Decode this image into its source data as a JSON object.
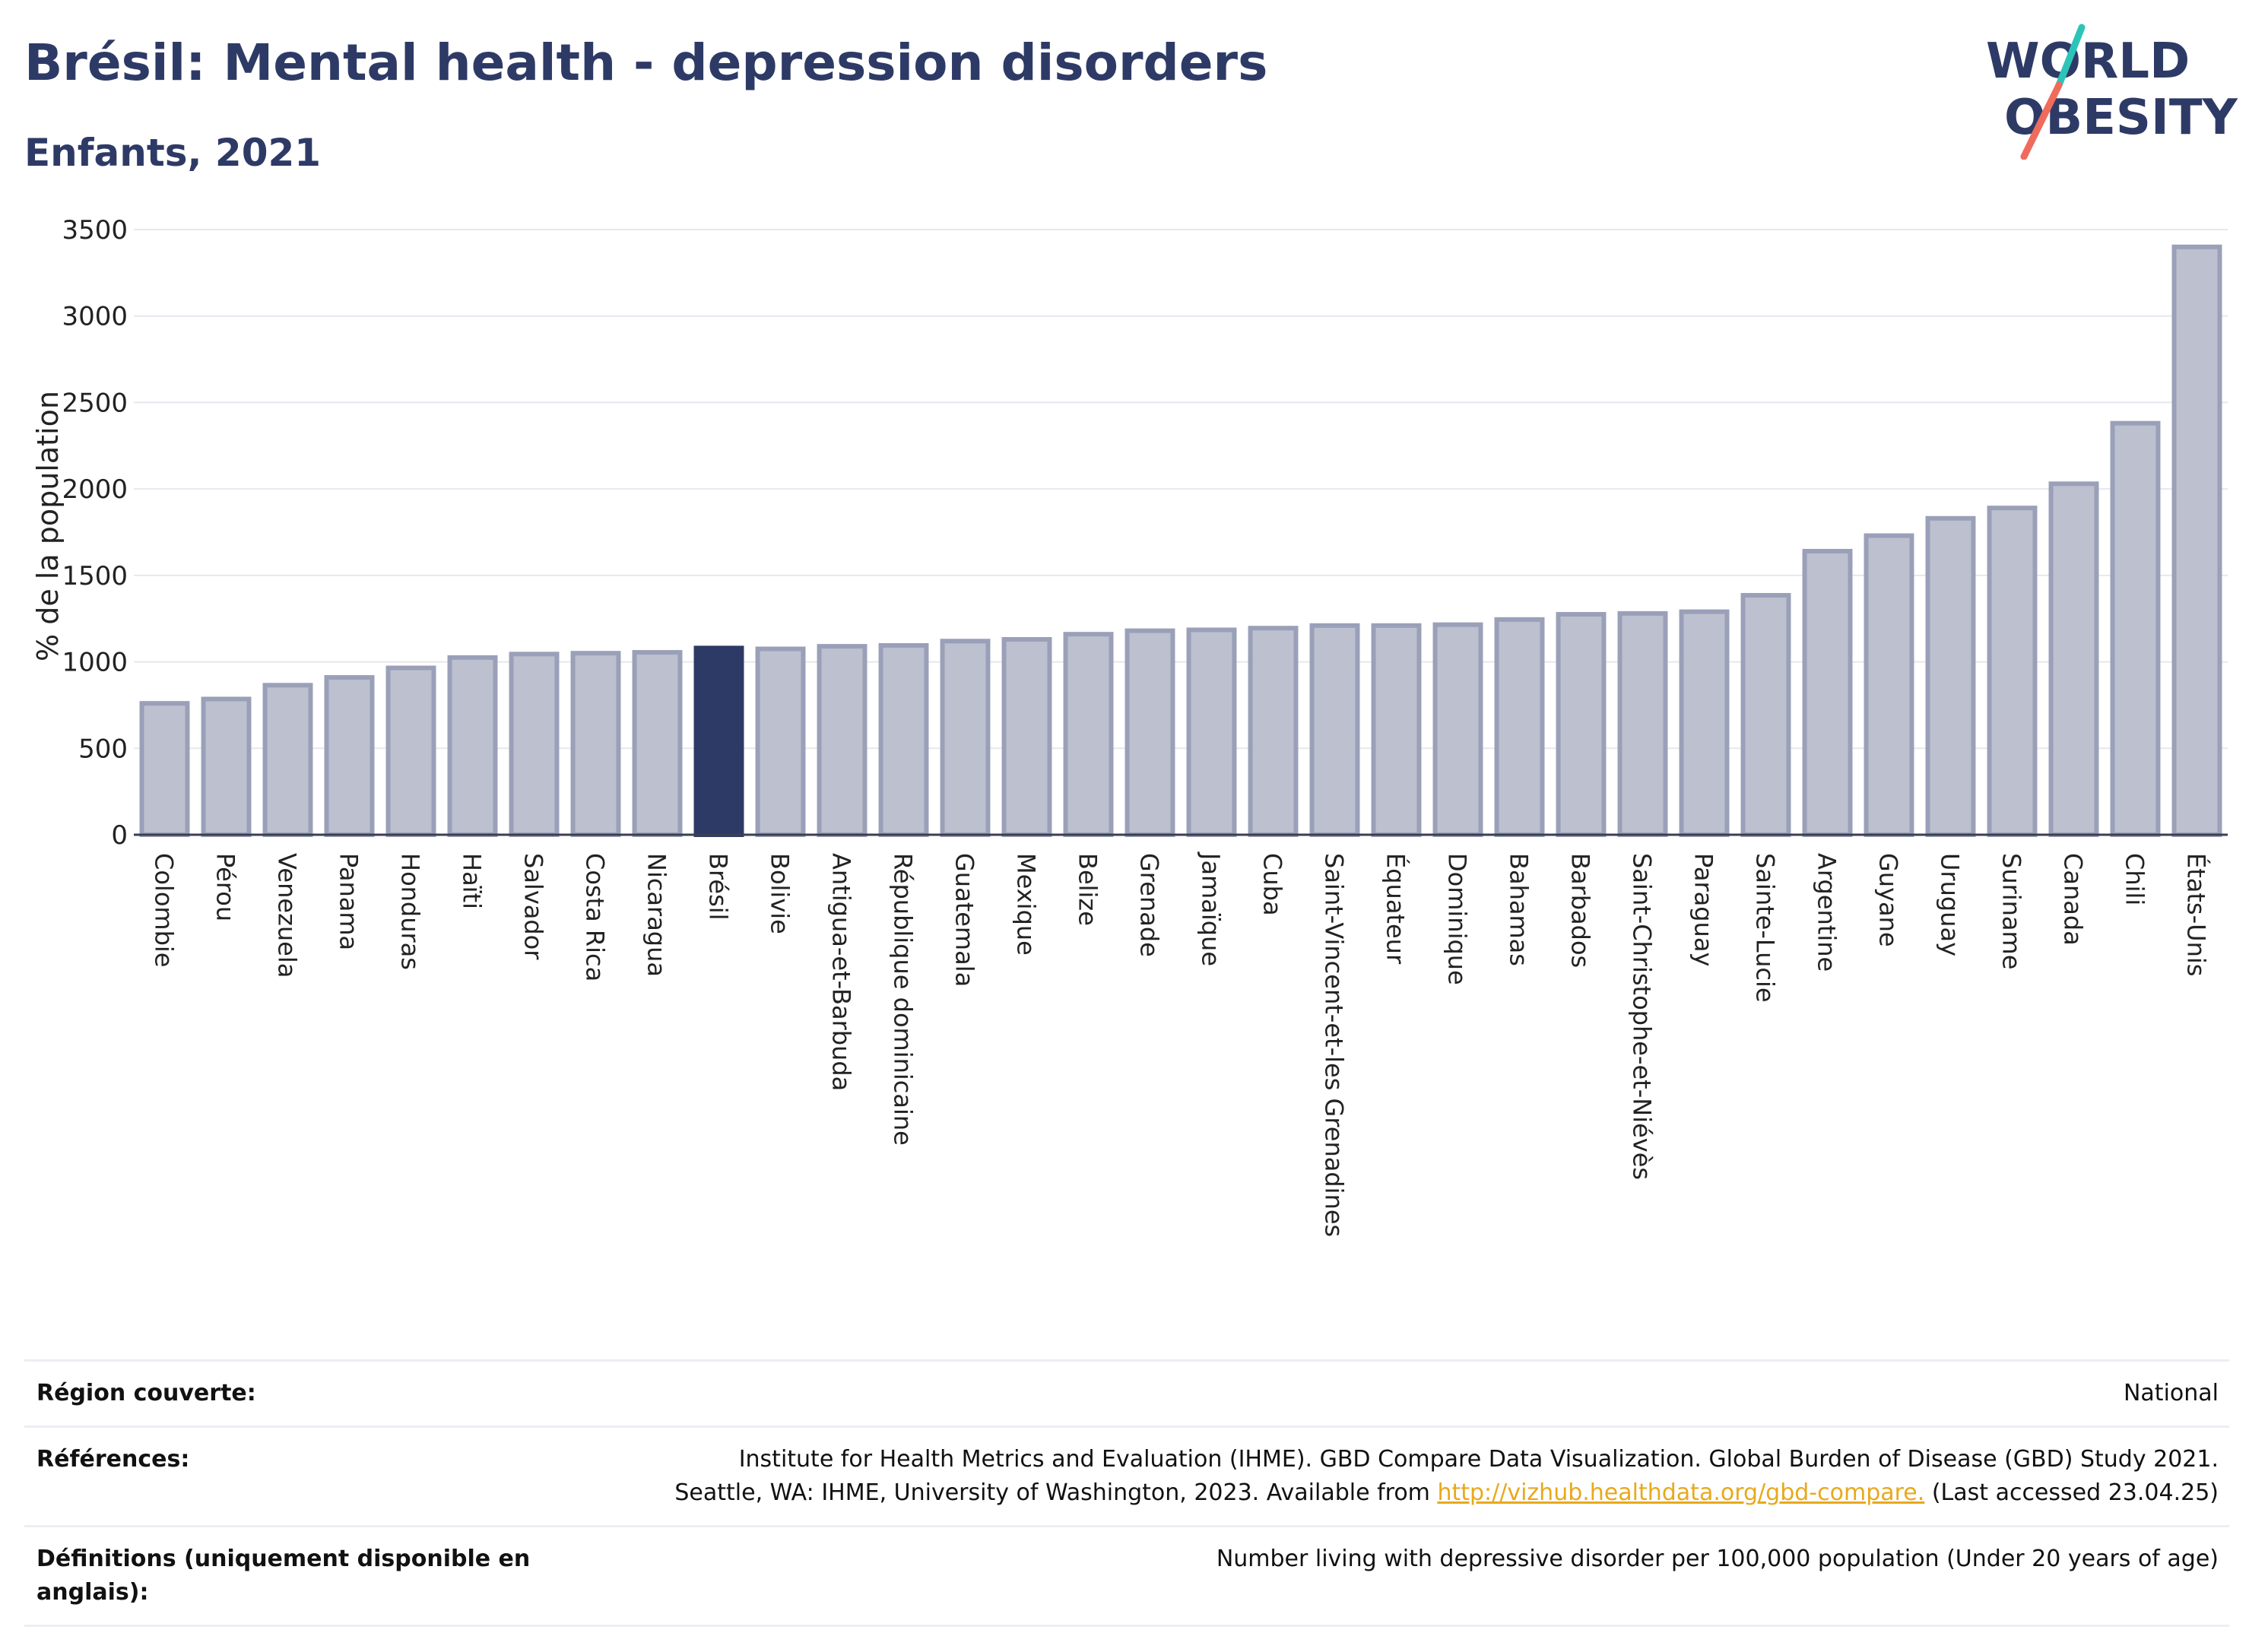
{
  "title": "Brésil: Mental health - depression disorders",
  "subtitle": "Enfants, 2021",
  "logo": {
    "line1": "WORLD",
    "line2": "OBESITY"
  },
  "colors": {
    "highlight": "#2e3a66",
    "bar": "#bcc0cf",
    "bar_border": "#9aa0b8",
    "title": "#2e3a66",
    "link": "#e8a91c"
  },
  "chart_data": {
    "type": "bar",
    "ylabel": "% de la population",
    "ylim": [
      0,
      3500
    ],
    "yticks": [
      0,
      500,
      1000,
      1500,
      2000,
      2500,
      3000,
      3500
    ],
    "grid": true,
    "highlight": "Brésil",
    "categories": [
      "Colombie",
      "Pérou",
      "Venezuela",
      "Panama",
      "Honduras",
      "Haïti",
      "Salvador",
      "Costa Rica",
      "Nicaragua",
      "Brésil",
      "Bolivie",
      "Antigua-et-Barbuda",
      "République dominicaine",
      "Guatemala",
      "Mexique",
      "Belize",
      "Grenade",
      "Jamaïque",
      "Cuba",
      "Saint-Vincent-et-les Grenadines",
      "Équateur",
      "Dominique",
      "Bahamas",
      "Barbados",
      "Saint-Christophe-et-Niévès",
      "Paraguay",
      "Sainte-Lucie",
      "Argentine",
      "Guyane",
      "Uruguay",
      "Suriname",
      "Canada",
      "Chili",
      "États-Unis"
    ],
    "values": [
      760,
      785,
      865,
      910,
      965,
      1025,
      1045,
      1050,
      1055,
      1080,
      1075,
      1090,
      1095,
      1120,
      1130,
      1160,
      1180,
      1185,
      1195,
      1210,
      1210,
      1215,
      1245,
      1275,
      1280,
      1290,
      1385,
      1640,
      1730,
      1830,
      1890,
      2030,
      2380,
      3400
    ]
  },
  "info": {
    "region_label": "Région couverte:",
    "region_value": "National",
    "ref_label": "Références:",
    "ref_line1": "Institute for Health Metrics and Evaluation (IHME). GBD Compare Data Visualization. Global Burden of Disease (GBD) Study 2021.",
    "ref_line2_pre": "Seattle, WA: IHME, University of Washington, 2023. Available from ",
    "ref_link": "http://vizhub.healthdata.org/gbd-compare.",
    "ref_line2_post": " (Last accessed 23.04.25)",
    "def_label": "Définitions (uniquement disponible en anglais):",
    "def_value": "Number living with depressive disorder per 100,000 population (Under 20 years of age)"
  }
}
